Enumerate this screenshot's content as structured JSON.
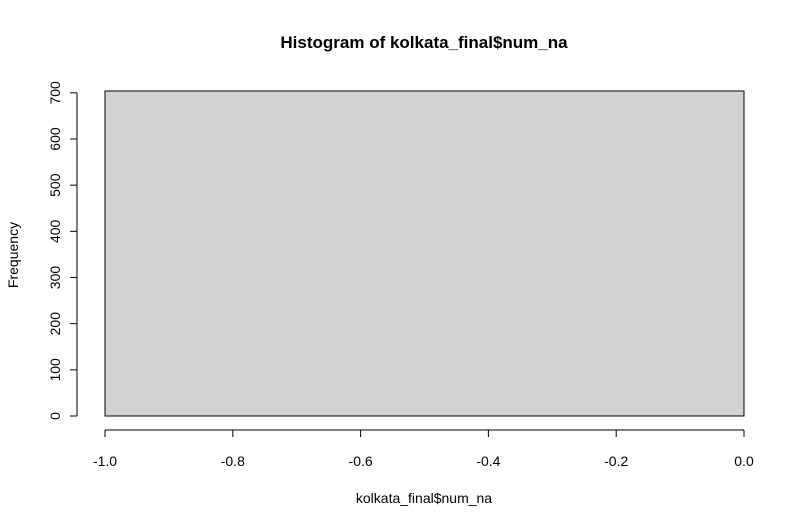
{
  "chart_data": {
    "type": "bar",
    "title": "Histogram of kolkata_final$num_na",
    "xlabel": "kolkata_final$num_na",
    "ylabel": "Frequency",
    "bins": [
      {
        "x_start": -1.0,
        "x_end": 0.0,
        "count": 704
      }
    ],
    "xlim": [
      -1.0,
      0.0
    ],
    "ylim": [
      0,
      704
    ],
    "x_ticks": [
      -1.0,
      -0.8,
      -0.6,
      -0.4,
      -0.2,
      0.0
    ],
    "x_tick_labels": [
      "-1.0",
      "-0.8",
      "-0.6",
      "-0.4",
      "-0.2",
      "0.0"
    ],
    "y_ticks": [
      0,
      100,
      200,
      300,
      400,
      500,
      600,
      700
    ],
    "y_tick_labels": [
      "0",
      "100",
      "200",
      "300",
      "400",
      "500",
      "600",
      "700"
    ],
    "bar_color": "#d3d3d3",
    "bar_border_color": "#000000",
    "grid": false,
    "legend": "none"
  }
}
